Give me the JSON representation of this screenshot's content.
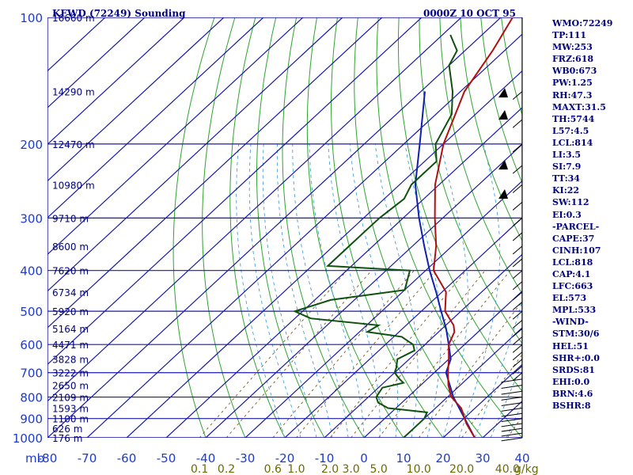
{
  "chart_data": {
    "type": "skew-t",
    "title_left": "KFWD (72249) Sounding",
    "title_right": "0000Z 10 OCT 95",
    "pressure_levels": [
      100,
      200,
      300,
      400,
      500,
      600,
      700,
      800,
      900,
      1000
    ],
    "pressure_unit_label": "mb",
    "temperature_ticks": [
      -80,
      -70,
      -60,
      -50,
      -40,
      -30,
      -20,
      -10,
      0,
      10,
      20,
      30,
      40
    ],
    "mixing_ratio_labels": [
      "0.1",
      "0.2",
      "0.6",
      "1.0",
      "2.0",
      "3.0",
      "5.0",
      "10.0",
      "20.0",
      "40.0"
    ],
    "mixing_ratio_unit": "g/kg",
    "height_labels": [
      {
        "p": 100,
        "label": "16660 m"
      },
      {
        "p": 150,
        "label": "14290 m"
      },
      {
        "p": 200,
        "label": "12470 m"
      },
      {
        "p": 250,
        "label": "10980 m"
      },
      {
        "p": 300,
        "label": "9710 m"
      },
      {
        "p": 350,
        "label": "8600 m"
      },
      {
        "p": 400,
        "label": "7620 m"
      },
      {
        "p": 450,
        "label": "6734 m"
      },
      {
        "p": 500,
        "label": "5920 m"
      },
      {
        "p": 550,
        "label": "5164 m"
      },
      {
        "p": 600,
        "label": "4471 m"
      },
      {
        "p": 650,
        "label": "3828 m"
      },
      {
        "p": 700,
        "label": "3222 m"
      },
      {
        "p": 750,
        "label": "2650 m"
      },
      {
        "p": 800,
        "label": "2109 m"
      },
      {
        "p": 850,
        "label": "1593 m"
      },
      {
        "p": 900,
        "label": "1100 m"
      },
      {
        "p": 950,
        "label": "626 m"
      },
      {
        "p": 1000,
        "label": "176 m"
      }
    ],
    "temperature_profile": [
      [
        1000,
        28
      ],
      [
        925,
        22
      ],
      [
        850,
        16.5
      ],
      [
        800,
        11
      ],
      [
        750,
        7
      ],
      [
        700,
        3.5
      ],
      [
        650,
        0
      ],
      [
        600,
        -4
      ],
      [
        560,
        -6
      ],
      [
        540,
        -8
      ],
      [
        500,
        -14
      ],
      [
        450,
        -19
      ],
      [
        400,
        -28
      ],
      [
        350,
        -34
      ],
      [
        300,
        -42
      ],
      [
        250,
        -51
      ],
      [
        200,
        -60
      ],
      [
        150,
        -69
      ],
      [
        120,
        -73
      ],
      [
        100,
        -77
      ]
    ],
    "dewpoint_profile": [
      [
        1000,
        10
      ],
      [
        950,
        10
      ],
      [
        900,
        10
      ],
      [
        870,
        9
      ],
      [
        850,
        -2
      ],
      [
        825,
        -6
      ],
      [
        800,
        -8
      ],
      [
        760,
        -9
      ],
      [
        740,
        -5
      ],
      [
        725,
        -7
      ],
      [
        700,
        -10
      ],
      [
        680,
        -11
      ],
      [
        650,
        -13
      ],
      [
        620,
        -11
      ],
      [
        600,
        -13
      ],
      [
        575,
        -18
      ],
      [
        560,
        -28
      ],
      [
        540,
        -27
      ],
      [
        520,
        -46
      ],
      [
        500,
        -52
      ],
      [
        470,
        -46
      ],
      [
        445,
        -30
      ],
      [
        400,
        -34
      ],
      [
        390,
        -56
      ],
      [
        350,
        -56
      ],
      [
        320,
        -56
      ],
      [
        300,
        -56
      ],
      [
        270,
        -55
      ],
      [
        250,
        -57
      ],
      [
        220,
        -57
      ],
      [
        200,
        -62
      ],
      [
        170,
        -66
      ],
      [
        150,
        -72
      ],
      [
        130,
        -80
      ],
      [
        120,
        -82
      ],
      [
        110,
        -88
      ]
    ],
    "parcel_profile": [
      [
        1000,
        28
      ],
      [
        800,
        11.5
      ],
      [
        700,
        3
      ],
      [
        650,
        0.5
      ],
      [
        600,
        -4
      ],
      [
        550,
        -9
      ],
      [
        500,
        -15
      ],
      [
        450,
        -21.5
      ],
      [
        400,
        -29
      ],
      [
        350,
        -37
      ],
      [
        300,
        -46
      ],
      [
        250,
        -56
      ],
      [
        200,
        -66
      ],
      [
        150,
        -79
      ]
    ]
  },
  "indices": [
    "WMO:72249",
    "TP:111",
    "MW:253",
    "FRZ:618",
    "WB0:673",
    "PW:1.25",
    "RH:47.3",
    "MAXT:31.5",
    "TH:5744",
    "L57:4.5",
    "LCL:814",
    "LI:3.5",
    "SI:7.9",
    "TT:34",
    "KI:22",
    "SW:112",
    "EI:0.3",
    "-PARCEL-",
    "CAPE:37",
    "CINH:107",
    "LCL:818",
    "CAP:4.1",
    "LFC:663",
    "EL:573",
    "MPL:533",
    "-WIND-",
    "STM:30/6",
    "HEL:51",
    "SHR+:0.0",
    "SRDS:81",
    "EHI:0.0",
    "BRN:4.6",
    "BSHR:8"
  ],
  "colors": {
    "isobar": "#1a1aa8",
    "isotherm": "#1a1aa8",
    "dry_adiabat": "#2ea52e",
    "moist_adiabat": "#44a0d8",
    "mixing_ratio": "#7a5a1a",
    "temperature": "#b01010",
    "dewpoint": "#105010",
    "parcel": "#1020b0"
  }
}
